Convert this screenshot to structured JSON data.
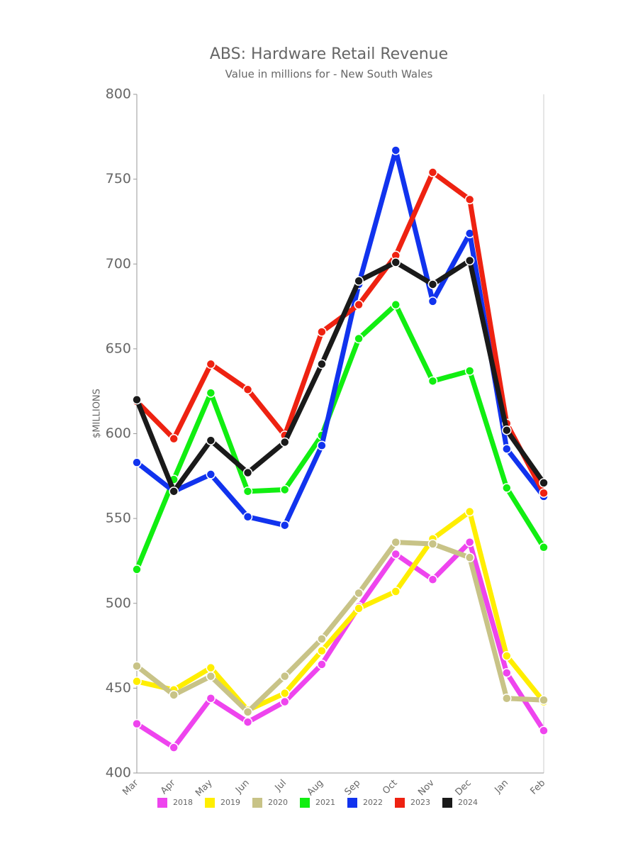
{
  "chart_data": {
    "type": "line",
    "title": "ABS: Hardware Retail Revenue",
    "subtitle": "Value in millions for - New South Wales",
    "y_label": "$MILLIONS",
    "categories": [
      "Mar",
      "Apr",
      "May",
      "Jun",
      "Jul",
      "Aug",
      "Sep",
      "Oct",
      "Nov",
      "Dec",
      "Jan",
      "Feb"
    ],
    "series": [
      {
        "name": "2018",
        "color": "#ee44ee",
        "values": [
          429,
          415,
          444,
          430,
          442,
          464,
          498,
          529,
          514,
          536,
          459,
          425
        ]
      },
      {
        "name": "2019",
        "color": "#ffee00",
        "values": [
          454,
          449,
          462,
          437,
          447,
          472,
          497,
          507,
          538,
          554,
          469,
          442
        ]
      },
      {
        "name": "2020",
        "color": "#c8c387",
        "values": [
          463,
          446,
          457,
          436,
          457,
          479,
          506,
          536,
          535,
          527,
          444,
          443
        ]
      },
      {
        "name": "2021",
        "color": "#11ee11",
        "values": [
          520,
          573,
          624,
          566,
          567,
          599,
          656,
          676,
          631,
          637,
          568,
          533
        ]
      },
      {
        "name": "2022",
        "color": "#1133ee",
        "values": [
          583,
          566,
          576,
          551,
          546,
          593,
          688,
          767,
          678,
          718,
          591,
          563
        ]
      },
      {
        "name": "2023",
        "color": "#ee2211",
        "values": [
          619,
          597,
          641,
          626,
          599,
          660,
          676,
          705,
          754,
          738,
          606,
          565
        ]
      },
      {
        "name": "2024",
        "color": "#1a1a1a",
        "values": [
          620,
          566,
          596,
          577,
          595,
          641,
          690,
          701,
          688,
          702,
          602,
          571
        ]
      }
    ],
    "ylim": [
      400,
      800
    ],
    "yticks": [
      400,
      450,
      500,
      550,
      600,
      650,
      700,
      750,
      800
    ],
    "legend": "bottom"
  }
}
